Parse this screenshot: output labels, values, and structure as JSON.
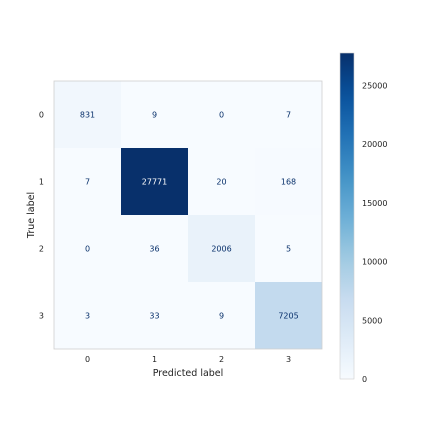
{
  "chart_data": {
    "type": "heatmap",
    "xlabel": "Predicted label",
    "ylabel": "True label",
    "x_categories": [
      "0",
      "1",
      "2",
      "3"
    ],
    "y_categories": [
      "0",
      "1",
      "2",
      "3"
    ],
    "matrix": [
      [
        831,
        9,
        0,
        7
      ],
      [
        7,
        27771,
        20,
        168
      ],
      [
        0,
        36,
        2006,
        5
      ],
      [
        3,
        33,
        9,
        7205
      ]
    ],
    "colormap": "Blues",
    "colorbar": {
      "range": [
        0,
        27771
      ],
      "ticks": [
        0,
        5000,
        10000,
        15000,
        20000,
        25000
      ],
      "tick_labels": [
        "0",
        "5000",
        "10000",
        "15000",
        "20000",
        "25000"
      ]
    },
    "grid": false
  }
}
